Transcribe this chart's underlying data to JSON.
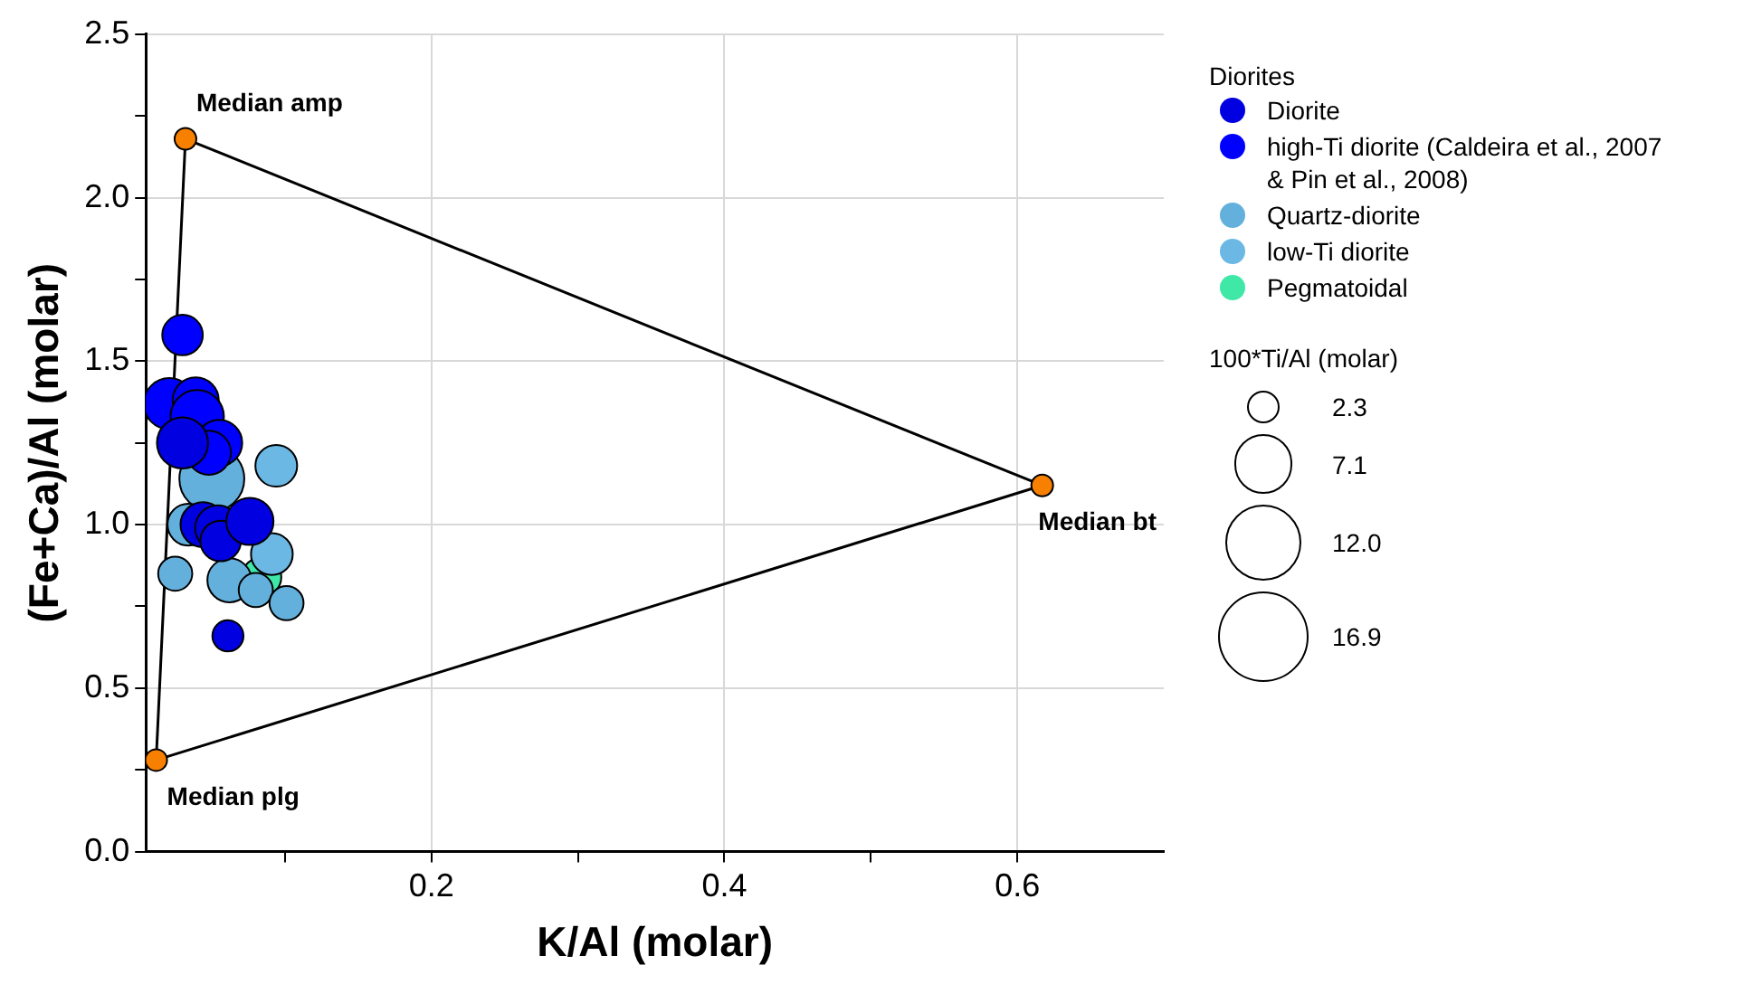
{
  "chart_data": {
    "type": "bubble",
    "xlabel": "K/Al (molar)",
    "ylabel": "(Fe+Ca)/Al (molar)",
    "legend_title": "Diorites",
    "xlim": [
      0.005,
      0.7
    ],
    "xticks": [
      {
        "value": 0.1,
        "label": null
      },
      0.2,
      {
        "value": 0.3,
        "label": null
      },
      0.4,
      {
        "value": 0.5,
        "label": null
      },
      0.6
    ],
    "ylim": [
      0,
      2.5
    ],
    "yticks": [
      {
        "value": 0,
        "label": "0.0"
      },
      {
        "value": 0.25,
        "label": null
      },
      0.5,
      {
        "value": 0.75,
        "label": null
      },
      {
        "value": 1,
        "label": "1.0"
      },
      {
        "value": 1.25,
        "label": null
      },
      1.5,
      {
        "value": 1.75,
        "label": null
      },
      {
        "value": 2,
        "label": "2.0"
      },
      {
        "value": 2.25,
        "label": null
      },
      2.5
    ],
    "grid": true,
    "legend": "top right",
    "marker": "circle",
    "size_legend": [
      2.3,
      7.1,
      {
        "value": 12,
        "label": "12.0"
      },
      16.9
    ],
    "series": [
      {
        "name": "Diorite",
        "color": "#0000e0",
        "x": [
          0.03,
          0.044,
          0.054,
          0.056,
          0.076,
          0.061
        ],
        "values": [
          1.25,
          1.0,
          0.99,
          0.95,
          1.01,
          0.66
        ],
        "sizes": [
          5.4,
          4.2,
          4.2,
          3.4,
          4.6,
          2.0
        ]
      },
      {
        "name": "high-Ti diorite (Caldeira et al., 2007 & Pin et al., 2008)",
        "color": "#0000ff",
        "x": [
          0.03,
          0.021,
          0.039,
          0.04,
          0.055,
          0.048
        ],
        "values": [
          1.58,
          1.37,
          1.38,
          1.33,
          1.25,
          1.22
        ],
        "sizes": [
          3.4,
          5.4,
          4.4,
          5.9,
          4.4,
          4.0
        ]
      },
      {
        "name": "Quartz-diorite",
        "color": "#64b0dc",
        "x": [
          0.05,
          0.034,
          0.025,
          0.062,
          0.08,
          0.101
        ],
        "values": [
          1.14,
          1.0,
          0.85,
          0.83,
          0.8,
          0.76
        ],
        "sizes": [
          8.7,
          3.6,
          2.4,
          4.0,
          2.4,
          2.4
        ]
      },
      {
        "name": "low-Ti diorite",
        "color": "#6cb8e4",
        "x": [
          0.094,
          0.091
        ],
        "values": [
          1.18,
          0.91
        ],
        "sizes": [
          3.6,
          3.6
        ]
      },
      {
        "name": "Pegmatoidal",
        "color": "#40e8a8",
        "x": [
          0.084
        ],
        "values": [
          0.84
        ],
        "sizes": [
          3.2
        ]
      },
      {
        "type": "line",
        "color": "#000000",
        "marker": "none",
        "x": [
          0.032,
          0.617
        ],
        "values": [
          2.18,
          1.12
        ]
      },
      {
        "type": "line",
        "color": "#000000",
        "marker": "none",
        "x": [
          0.012,
          0.617
        ],
        "values": [
          0.28,
          1.12
        ]
      },
      {
        "type": "line",
        "color": "#000000",
        "marker": "none",
        "x": [
          0.012,
          0.032
        ],
        "values": [
          0.28,
          2.18
        ]
      },
      {
        "type": "scatter",
        "color": "#f88000",
        "x": [
          0.032,
          0.617,
          0.012
        ],
        "values": [
          2.18,
          1.12,
          0.28
        ]
      }
    ],
    "annotations": [
      {
        "text": "Median amp",
        "x": 0.032,
        "y": 2.18
      },
      {
        "text": "Median bt",
        "x": 0.617,
        "y": 1.12
      },
      {
        "text": "Median plg",
        "x": 0.012,
        "y": 0.28
      },
      "100*Ti/Al (molar)"
    ]
  }
}
